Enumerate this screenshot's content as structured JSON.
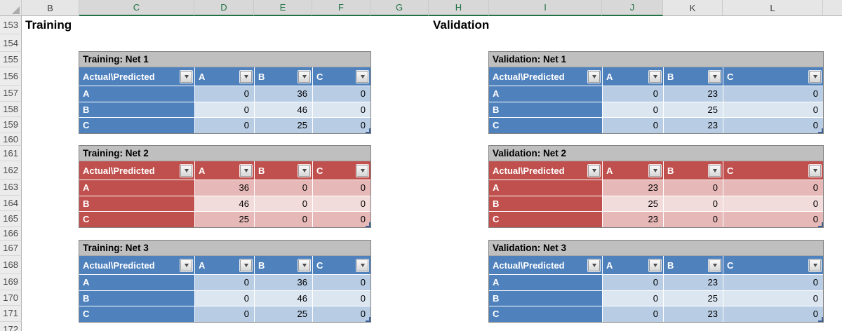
{
  "sheet": {
    "section_titles": {
      "left": "Training",
      "right": "Validation"
    },
    "column_letters": [
      "B",
      "C",
      "D",
      "E",
      "F",
      "G",
      "H",
      "I",
      "J",
      "K",
      "L"
    ],
    "selected_columns": [
      "C",
      "D",
      "E",
      "F",
      "G",
      "H",
      "I",
      "J"
    ],
    "row_numbers": [
      "153",
      "154",
      "155",
      "156",
      "157",
      "158",
      "159",
      "160",
      "161",
      "162",
      "163",
      "164",
      "165",
      "166",
      "167",
      "168",
      "169",
      "170",
      "171",
      "172"
    ]
  },
  "colors": {
    "blue_header": "#4F81BD",
    "blue_band_dark": "#B8CCE4",
    "blue_band_light": "#DCE6F1",
    "red_header": "#C0504D",
    "red_band_dark": "#E6B9B8",
    "red_band_light": "#F2DCDB",
    "table_title_bg": "#BFBFBF",
    "selection_green": "#217346"
  },
  "tables": [
    {
      "id": "training-net-1",
      "theme": "blue",
      "title": "Training: Net 1",
      "corner": "Actual\\Predicted",
      "columns": [
        "A",
        "B",
        "C"
      ],
      "rows": [
        {
          "label": "A",
          "values": [
            "0",
            "36",
            "0"
          ]
        },
        {
          "label": "B",
          "values": [
            "0",
            "46",
            "0"
          ]
        },
        {
          "label": "C",
          "values": [
            "0",
            "25",
            "0"
          ]
        }
      ]
    },
    {
      "id": "training-net-2",
      "theme": "red",
      "title": "Training: Net 2",
      "corner": "Actual\\Predicted",
      "columns": [
        "A",
        "B",
        "C"
      ],
      "rows": [
        {
          "label": "A",
          "values": [
            "36",
            "0",
            "0"
          ]
        },
        {
          "label": "B",
          "values": [
            "46",
            "0",
            "0"
          ]
        },
        {
          "label": "C",
          "values": [
            "25",
            "0",
            "0"
          ]
        }
      ]
    },
    {
      "id": "training-net-3",
      "theme": "blue",
      "title": "Training: Net 3",
      "corner": "Actual\\Predicted",
      "columns": [
        "A",
        "B",
        "C"
      ],
      "rows": [
        {
          "label": "A",
          "values": [
            "0",
            "36",
            "0"
          ]
        },
        {
          "label": "B",
          "values": [
            "0",
            "46",
            "0"
          ]
        },
        {
          "label": "C",
          "values": [
            "0",
            "25",
            "0"
          ]
        }
      ]
    },
    {
      "id": "validation-net-1",
      "theme": "blue",
      "title": "Validation: Net 1",
      "corner": "Actual\\Predicted",
      "columns": [
        "A",
        "B",
        "C"
      ],
      "rows": [
        {
          "label": "A",
          "values": [
            "0",
            "23",
            "0"
          ]
        },
        {
          "label": "B",
          "values": [
            "0",
            "25",
            "0"
          ]
        },
        {
          "label": "C",
          "values": [
            "0",
            "23",
            "0"
          ]
        }
      ]
    },
    {
      "id": "validation-net-2",
      "theme": "red",
      "title": "Validation: Net 2",
      "corner": "Actual\\Predicted",
      "columns": [
        "A",
        "B",
        "C"
      ],
      "rows": [
        {
          "label": "A",
          "values": [
            "23",
            "0",
            "0"
          ]
        },
        {
          "label": "B",
          "values": [
            "25",
            "0",
            "0"
          ]
        },
        {
          "label": "C",
          "values": [
            "23",
            "0",
            "0"
          ]
        }
      ]
    },
    {
      "id": "validation-net-3",
      "theme": "blue",
      "title": "Validation: Net 3",
      "corner": "Actual\\Predicted",
      "columns": [
        "A",
        "B",
        "C"
      ],
      "rows": [
        {
          "label": "A",
          "values": [
            "0",
            "23",
            "0"
          ]
        },
        {
          "label": "B",
          "values": [
            "0",
            "25",
            "0"
          ]
        },
        {
          "label": "C",
          "values": [
            "0",
            "23",
            "0"
          ]
        }
      ]
    }
  ]
}
